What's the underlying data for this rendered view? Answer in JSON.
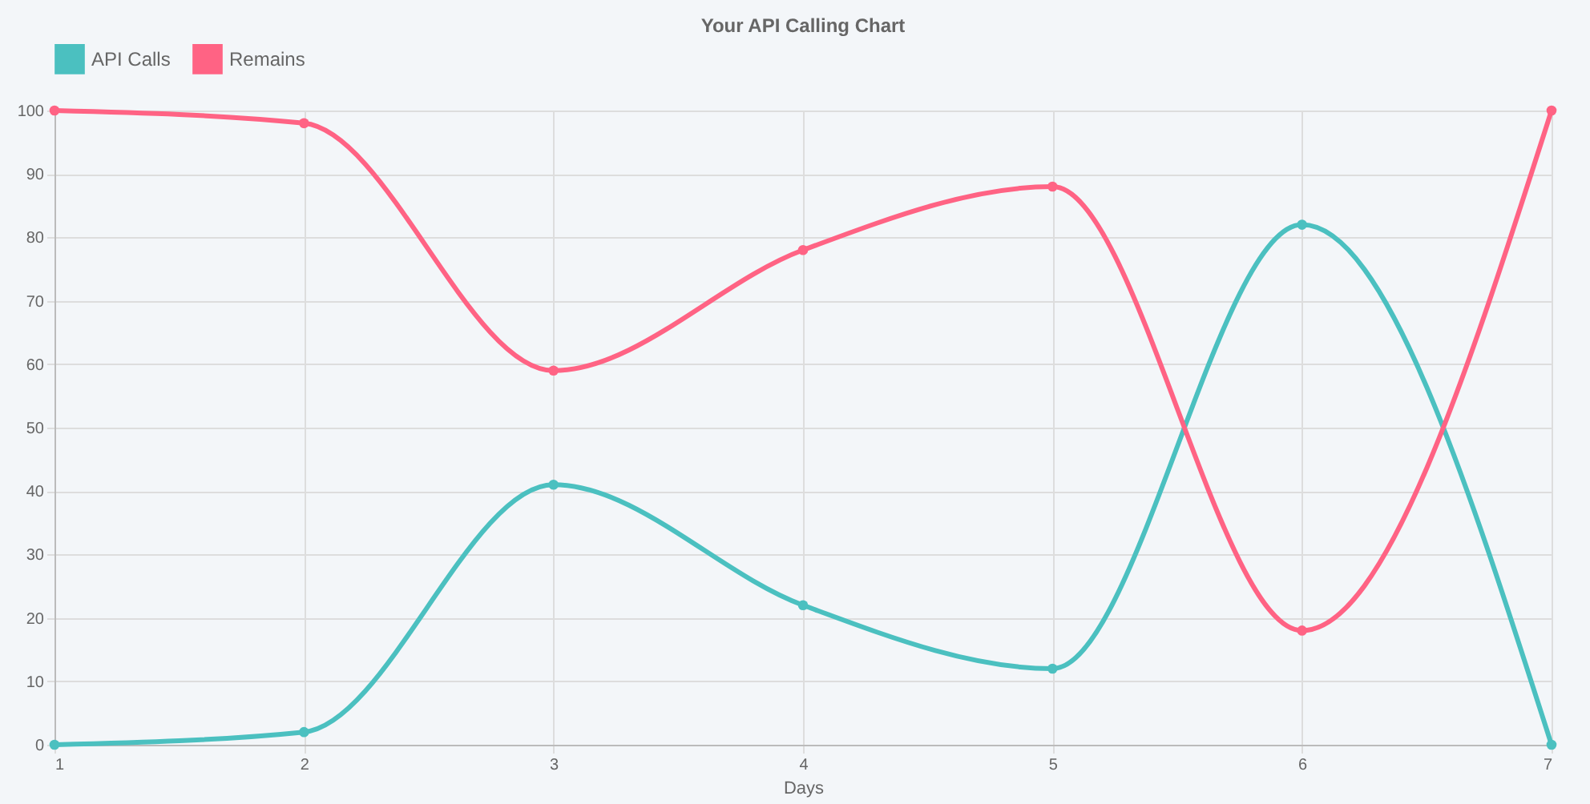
{
  "chart_data": {
    "type": "line",
    "title": "Your API Calling Chart",
    "xlabel": "Days",
    "x": [
      1,
      2,
      3,
      4,
      5,
      6,
      7
    ],
    "series": [
      {
        "name": "API Calls",
        "color": "#4bc0c0",
        "values": [
          0,
          2,
          41,
          22,
          12,
          82,
          0
        ]
      },
      {
        "name": "Remains",
        "color": "#ff6384",
        "values": [
          100,
          98,
          59,
          78,
          88,
          18,
          100
        ]
      }
    ],
    "xlim": [
      1,
      7
    ],
    "xticks": [
      1,
      2,
      3,
      4,
      5,
      6,
      7
    ],
    "ylim": [
      0,
      100
    ],
    "yticks": [
      0,
      10,
      20,
      30,
      40,
      50,
      60,
      70,
      80,
      90,
      100
    ],
    "grid": true,
    "legend": "top",
    "marker": "circle",
    "line_style": "solid"
  }
}
